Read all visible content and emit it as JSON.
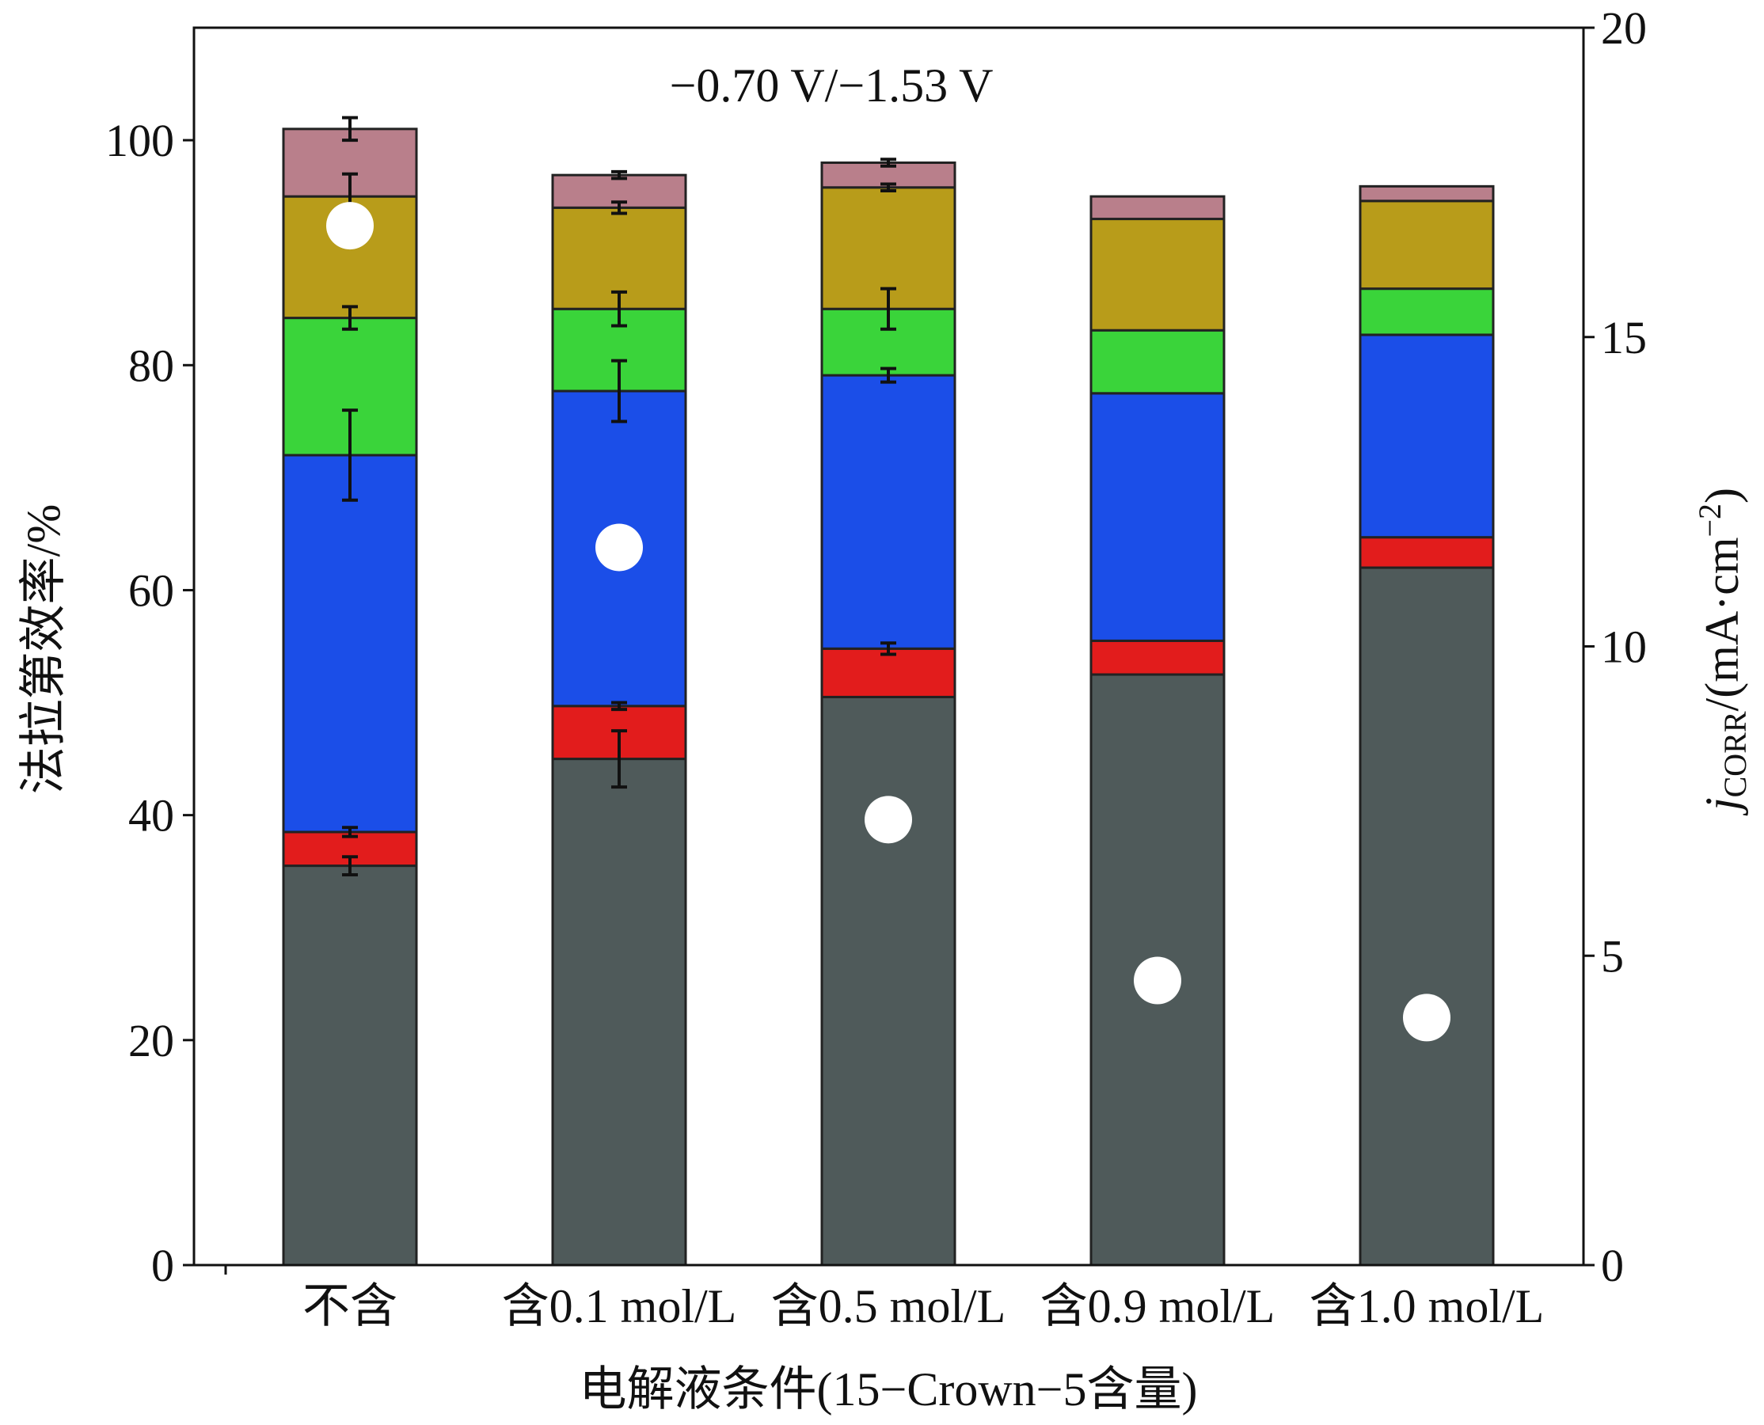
{
  "chart_data": {
    "type": "bar",
    "stacked": true,
    "annotation": "−0.70 V/−1.53 V",
    "xlabel": "电解液条件(15−Crown−5含量)",
    "ylabel": "法拉第效率/%",
    "y2label_main": "j",
    "y2label_sub": "CORR",
    "y2label_unit": "/(mA·cm",
    "y2label_sup": "−2",
    "y2label_close": ")",
    "ylim": [
      0,
      110
    ],
    "y2lim": [
      0,
      20
    ],
    "yticks": [
      "0",
      "20",
      "40",
      "60",
      "80",
      "100"
    ],
    "y2ticks": [
      "0",
      "5",
      "10",
      "15",
      "20"
    ],
    "grid": false,
    "categories": [
      "不含",
      "含0.1 mol/L",
      "含0.5 mol/L",
      "含0.9 mol/L",
      "含1.0 mol/L"
    ],
    "series": [
      {
        "color": "#4f5a5a",
        "values": [
          35.5,
          45.0,
          50.5,
          52.5,
          62.0
        ],
        "errors": [
          0.8,
          2.5,
          0,
          0,
          0
        ]
      },
      {
        "color": "#e21c1c",
        "values": [
          3.0,
          4.7,
          4.3,
          3.0,
          2.7
        ],
        "errors": [
          0.4,
          0.3,
          0.5,
          0,
          0
        ]
      },
      {
        "color": "#1b4ee8",
        "values": [
          33.5,
          28.0,
          24.3,
          22.0,
          18.0
        ],
        "errors": [
          4.0,
          2.7,
          0.6,
          0,
          0
        ]
      },
      {
        "color": "#3ad43a",
        "values": [
          12.2,
          7.3,
          5.9,
          5.6,
          4.1
        ],
        "errors": [
          1.0,
          1.5,
          1.8,
          0,
          0
        ]
      },
      {
        "color": "#b89c1a",
        "values": [
          10.8,
          9.0,
          10.8,
          9.9,
          7.8
        ],
        "errors": [
          2.0,
          0.5,
          0.3,
          0,
          0
        ]
      },
      {
        "color": "#b97f8b",
        "values": [
          6.0,
          2.9,
          2.2,
          2.0,
          1.3
        ],
        "errors": [
          1.0,
          0.3,
          0.3,
          0,
          0
        ]
      }
    ],
    "current_density": [
      16.8,
      11.6,
      7.2,
      4.6,
      4.0
    ]
  }
}
